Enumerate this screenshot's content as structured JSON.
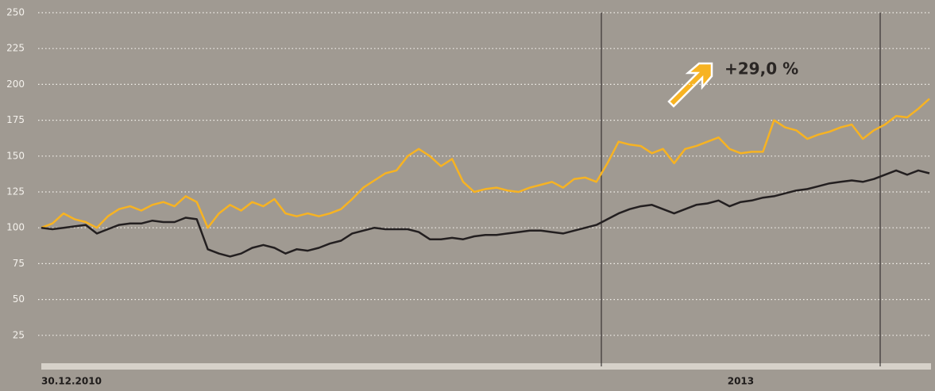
{
  "chart_data": {
    "type": "line",
    "annotation": "+29,0 %",
    "categories": [
      "30.12.2010",
      null,
      null,
      null,
      null,
      null,
      null,
      null,
      null,
      null,
      null,
      null,
      null,
      null,
      null,
      null,
      null,
      null,
      null,
      null,
      null,
      null,
      null,
      null,
      null,
      null,
      null,
      null,
      null,
      null,
      null,
      null,
      null,
      null,
      null,
      null,
      null,
      null,
      null,
      null,
      null,
      null,
      null,
      null,
      null,
      null,
      null,
      null,
      null,
      null,
      null,
      null,
      null,
      null,
      null,
      null,
      null,
      null,
      null,
      null,
      null,
      null,
      null,
      "2013",
      null,
      null,
      null,
      null,
      null,
      null,
      null,
      null,
      null,
      null,
      null,
      null,
      null,
      null,
      null,
      null,
      null
    ],
    "series": [
      {
        "color": "#f7b322",
        "values": [
          100,
          103,
          110,
          106,
          104,
          100,
          108,
          113,
          115,
          112,
          116,
          118,
          115,
          122,
          118,
          100,
          110,
          116,
          112,
          118,
          115,
          120,
          110,
          108,
          110,
          108,
          110,
          113,
          120,
          128,
          133,
          138,
          140,
          150,
          155,
          150,
          143,
          148,
          132,
          125,
          127,
          128,
          126,
          125,
          128,
          130,
          132,
          128,
          134,
          135,
          132,
          145,
          160,
          158,
          157,
          152,
          155,
          145,
          155,
          157,
          160,
          163,
          155,
          152,
          153,
          153,
          175,
          170,
          168,
          162,
          165,
          167,
          170,
          172,
          162,
          168,
          172,
          178,
          177,
          183,
          190
        ]
      },
      {
        "color": "#231f20",
        "values": [
          100,
          99,
          100,
          101,
          102,
          96,
          99,
          102,
          103,
          103,
          105,
          104,
          104,
          107,
          106,
          85,
          82,
          80,
          82,
          86,
          88,
          86,
          82,
          85,
          84,
          86,
          89,
          91,
          96,
          98,
          100,
          99,
          99,
          99,
          97,
          92,
          92,
          93,
          92,
          94,
          95,
          95,
          96,
          97,
          98,
          98,
          97,
          96,
          98,
          100,
          102,
          106,
          110,
          113,
          115,
          116,
          113,
          110,
          113,
          116,
          117,
          119,
          115,
          118,
          119,
          121,
          122,
          124,
          126,
          127,
          129,
          131,
          132,
          133,
          132,
          134,
          137,
          140,
          137,
          140,
          138
        ]
      }
    ],
    "ylim": [
      0,
      250
    ],
    "yticks": [
      25,
      50,
      75,
      100,
      125,
      150,
      175,
      200,
      225,
      250
    ],
    "grid": true
  }
}
